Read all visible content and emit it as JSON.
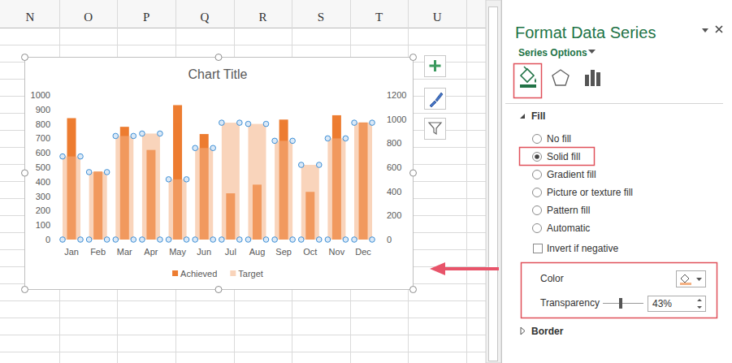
{
  "chart_data": {
    "type": "bar",
    "title": "Chart Title",
    "categories": [
      "Jan",
      "Feb",
      "Mar",
      "Apr",
      "May",
      "Jun",
      "Jul",
      "Aug",
      "Sep",
      "Oct",
      "Nov",
      "Dec"
    ],
    "series": [
      {
        "name": "Achieved",
        "color": "#ed7d31",
        "values": [
          840,
          470,
          780,
          620,
          930,
          730,
          320,
          380,
          830,
          330,
          860,
          810
        ]
      },
      {
        "name": "Target",
        "color": "#f4b183",
        "axis": "y2",
        "values": [
          690,
          560,
          860,
          880,
          500,
          760,
          970,
          960,
          820,
          620,
          840,
          970
        ]
      }
    ],
    "ylim": [
      0,
      1000
    ],
    "yticks": [
      0,
      100,
      200,
      300,
      400,
      500,
      600,
      700,
      800,
      900,
      1000
    ],
    "y2lim": [
      0,
      1200
    ],
    "y2ticks": [
      0,
      200,
      400,
      600,
      800,
      1000,
      1200
    ],
    "grid": false,
    "legend": "bottom"
  },
  "spreadsheet": {
    "columns": [
      "N",
      "O",
      "P",
      "Q",
      "R",
      "S",
      "T",
      "U"
    ]
  },
  "pane": {
    "title": "Format Data Series",
    "tab": "Series Options",
    "section": "Fill",
    "fill_options": [
      "No fill",
      "Solid fill",
      "Gradient fill",
      "Picture or texture fill",
      "Pattern fill",
      "Automatic"
    ],
    "selected": "Solid fill",
    "checkbox": "Invert if negative",
    "color_label": "Color",
    "transparency_label": "Transparency",
    "transparency_value": "43%",
    "collapsed_section": "Border"
  }
}
